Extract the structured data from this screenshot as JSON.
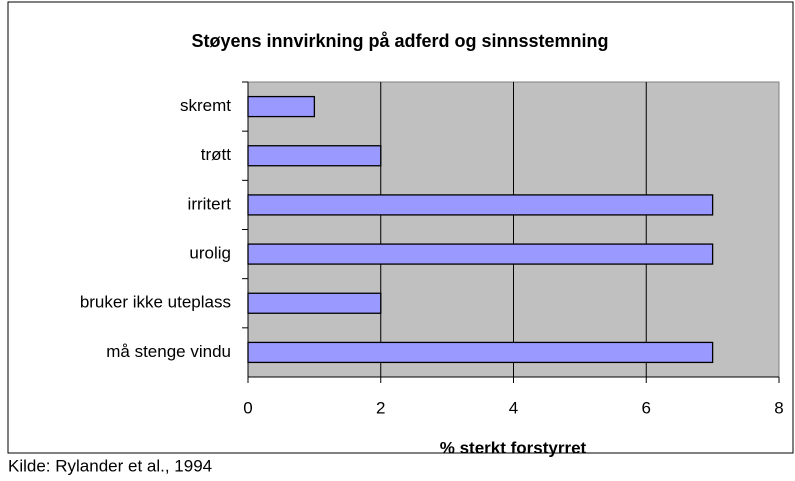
{
  "chart_data": {
    "type": "bar",
    "orientation": "horizontal",
    "title": "Støyens innvirkning på adferd og sinnsstemning",
    "x_label": "% sterkt forstyrret",
    "note": "Kilde: Rylander et al., 1994",
    "categories": [
      "skremt",
      "trøtt",
      "irritert",
      "urolig",
      "bruker ikke uteplass",
      "må stenge vindu"
    ],
    "values": [
      1,
      2,
      7,
      7,
      2,
      7
    ],
    "color": "#9999ff",
    "xlim": [
      0,
      8
    ],
    "xticks": [
      0,
      2,
      4,
      6,
      8
    ],
    "grid": true
  }
}
